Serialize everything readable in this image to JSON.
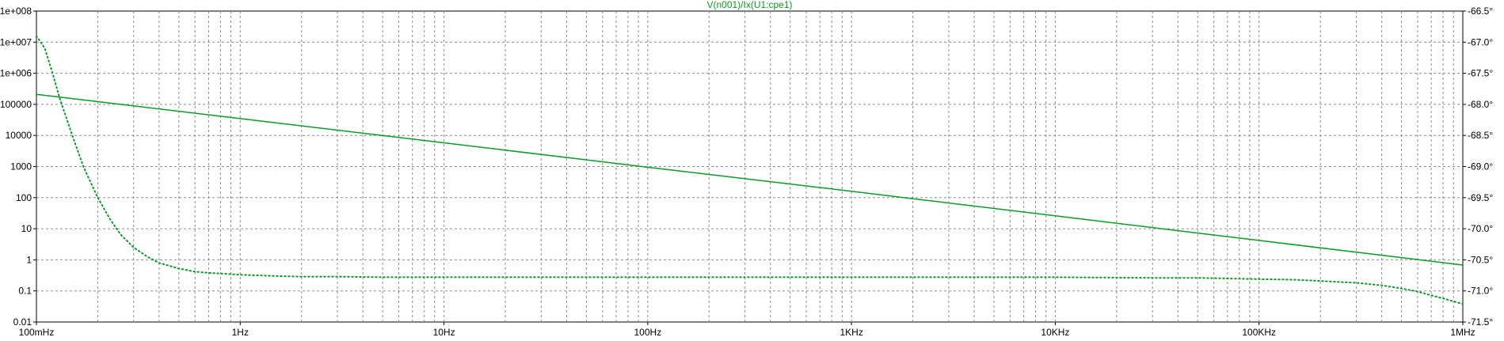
{
  "chart_data": {
    "type": "line",
    "title": "V(n001)/Ix(U1:cpe1)",
    "xscale": "log",
    "xlim": [
      0.1,
      1000000
    ],
    "x_tick_values": [
      0.1,
      1,
      10,
      100,
      1000,
      10000,
      100000,
      1000000
    ],
    "x_tick_labels": [
      "100mHz",
      "1Hz",
      "10Hz",
      "100Hz",
      "1KHz",
      "10KHz",
      "100KHz",
      "1MHz"
    ],
    "y_left": {
      "scale": "log",
      "range": [
        0.01,
        100000000
      ],
      "tick_values": [
        100000000,
        10000000,
        1000000,
        100000,
        10000,
        1000,
        100,
        10,
        1,
        0.1,
        0.01
      ],
      "tick_labels": [
        "1e+008",
        "1e+007",
        "1e+006",
        "100000",
        "10000",
        "1000",
        "100",
        "10",
        "1",
        "0.1",
        "0.01"
      ]
    },
    "y_right": {
      "scale": "linear",
      "range": [
        -71.5,
        -66.5
      ],
      "tick_values": [
        -66.5,
        -67.0,
        -67.5,
        -68.0,
        -68.5,
        -69.0,
        -69.5,
        -70.0,
        -70.5,
        -71.0,
        -71.5
      ],
      "tick_labels": [
        "-66.5°",
        "-67.0°",
        "-67.5°",
        "-68.0°",
        "-68.5°",
        "-69.0°",
        "-69.5°",
        "-70.0°",
        "-70.5°",
        "-71.0°",
        "-71.5°"
      ]
    },
    "grid": true,
    "series": [
      {
        "axis": "left",
        "style": "solid",
        "x": [
          0.1,
          1,
          10,
          100,
          1000,
          10000,
          100000,
          1000000
        ],
        "values": [
          210000,
          35000,
          5800,
          950,
          160,
          26,
          4.2,
          0.68
        ]
      },
      {
        "axis": "right",
        "style": "dotted",
        "x": [
          0.1,
          0.11,
          0.12,
          0.13,
          0.15,
          0.17,
          0.2,
          0.23,
          0.26,
          0.3,
          0.35,
          0.4,
          0.5,
          0.6,
          0.7,
          0.8,
          1,
          1.5,
          2,
          3,
          5,
          10,
          30,
          100,
          1000,
          10000,
          30000,
          50000,
          70000,
          100000,
          150000,
          200000,
          300000,
          400000,
          500000,
          600000,
          700000,
          800000,
          1000000
        ],
        "values": [
          -66.9,
          -67.1,
          -67.5,
          -67.9,
          -68.5,
          -69.0,
          -69.5,
          -69.85,
          -70.1,
          -70.3,
          -70.45,
          -70.55,
          -70.64,
          -70.69,
          -70.71,
          -70.72,
          -70.74,
          -70.76,
          -70.77,
          -70.77,
          -70.78,
          -70.78,
          -70.78,
          -70.78,
          -70.78,
          -70.78,
          -70.79,
          -70.79,
          -70.8,
          -70.81,
          -70.82,
          -70.84,
          -70.87,
          -70.91,
          -70.96,
          -71.01,
          -71.07,
          -71.12,
          -71.21
        ]
      }
    ],
    "colors": {
      "series": "#0a9c25",
      "grid": "#8c8c8c",
      "axis": "#000000"
    }
  }
}
